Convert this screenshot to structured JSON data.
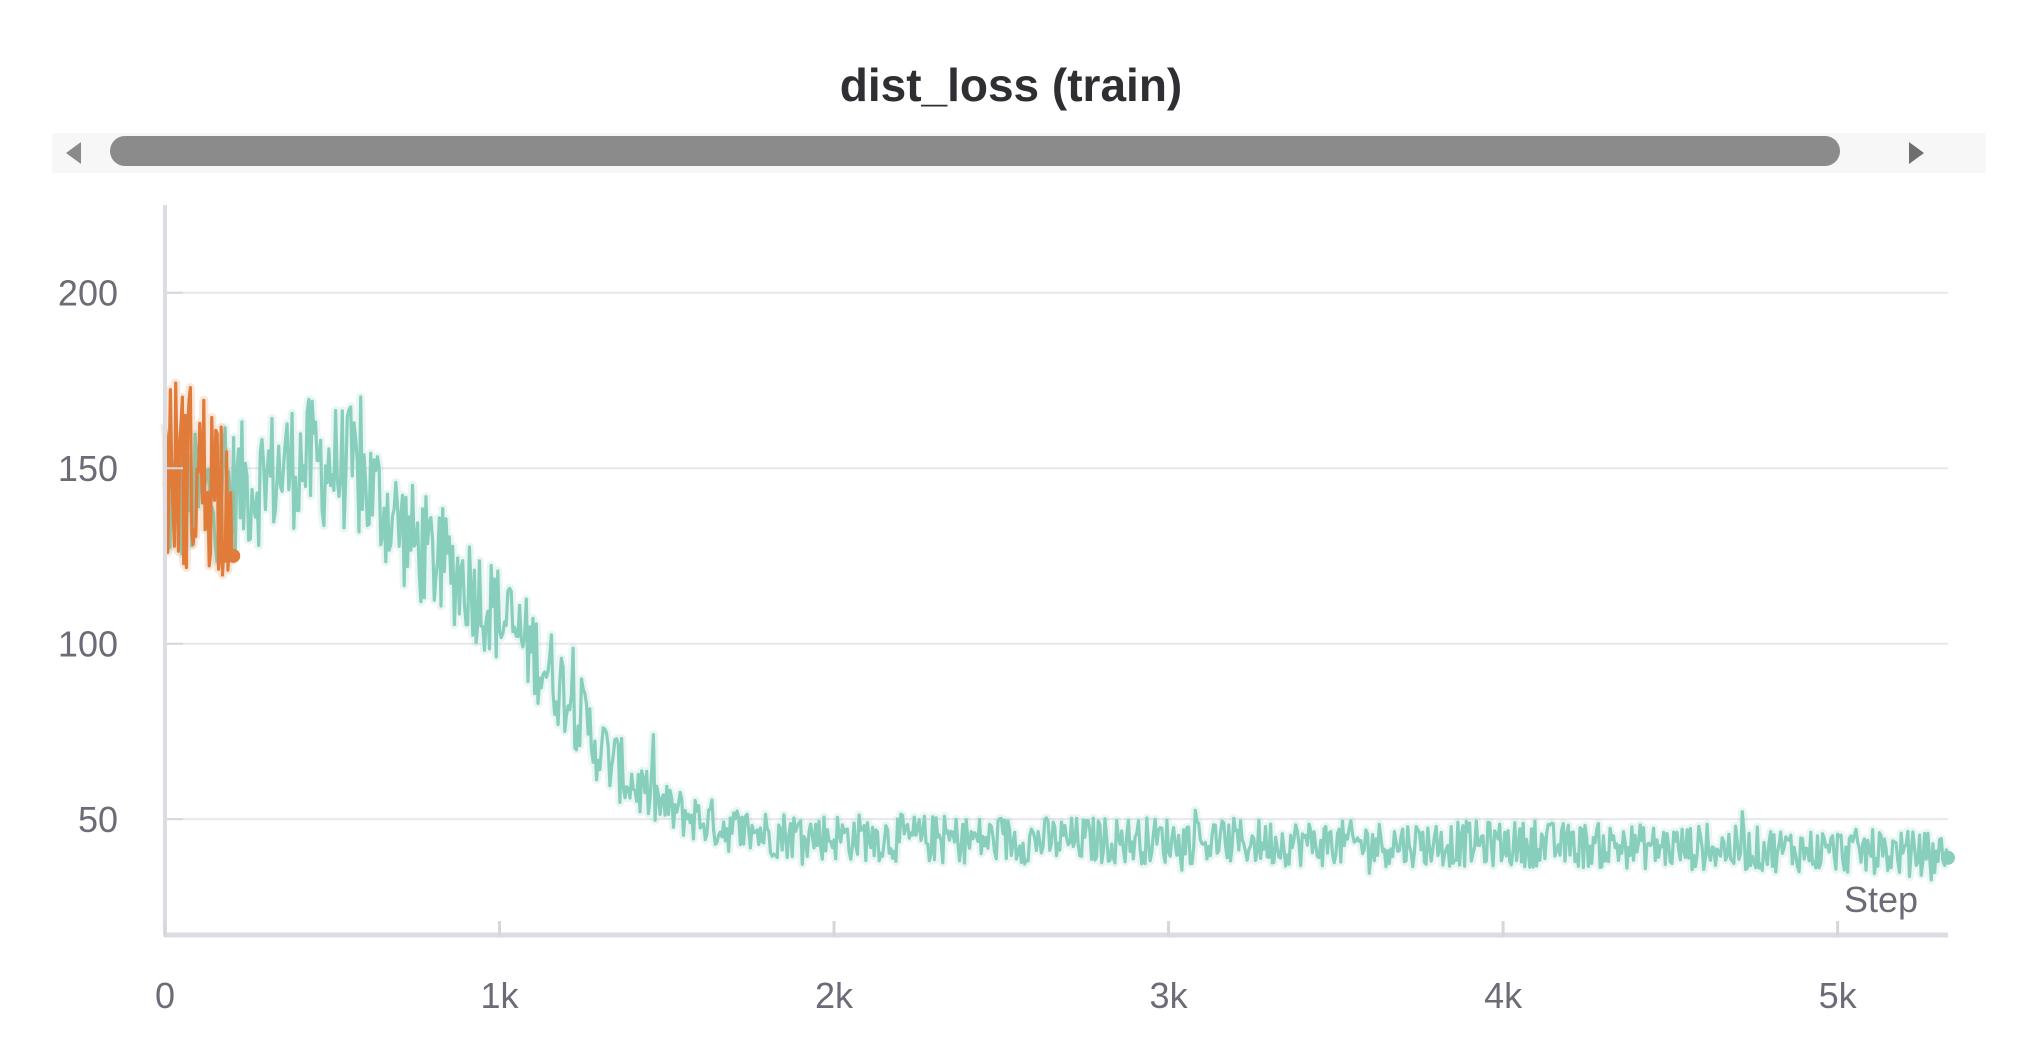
{
  "chart_data": {
    "type": "line",
    "title": "dist_loss (train)",
    "xlabel": "Step",
    "ylabel": "",
    "xlim": [
      0,
      5330
    ],
    "ylim": [
      17,
      225
    ],
    "x_ticks": [
      0,
      1000,
      2000,
      3000,
      4000,
      5000
    ],
    "x_tick_labels": [
      "0",
      "1k",
      "2k",
      "3k",
      "4k",
      "5k"
    ],
    "y_ticks": [
      50,
      100,
      150,
      200
    ],
    "y_tick_labels": [
      "50",
      "100",
      "150",
      "200"
    ],
    "grid": true,
    "series": [
      {
        "color": "#87cfbc",
        "x_range": [
          0,
          5330
        ],
        "anchors": [
          [
            0,
            140
          ],
          [
            200,
            143
          ],
          [
            400,
            152
          ],
          [
            550,
            150
          ],
          [
            650,
            140
          ],
          [
            750,
            128
          ],
          [
            900,
            118
          ],
          [
            1000,
            108
          ],
          [
            1100,
            98
          ],
          [
            1200,
            86
          ],
          [
            1300,
            70
          ],
          [
            1400,
            60
          ],
          [
            1500,
            53
          ],
          [
            1600,
            50
          ],
          [
            1700,
            47
          ],
          [
            1800,
            46
          ],
          [
            2000,
            45
          ],
          [
            2500,
            44
          ],
          [
            3000,
            44
          ],
          [
            3500,
            43
          ],
          [
            4000,
            43
          ],
          [
            4500,
            42
          ],
          [
            5000,
            41
          ],
          [
            5330,
            40
          ]
        ],
        "noise_amplitude": [
          [
            0,
            28
          ],
          [
            600,
            26
          ],
          [
            1200,
            18
          ],
          [
            1500,
            10
          ],
          [
            5330,
            9
          ]
        ],
        "end_value": 39
      },
      {
        "color": "#e07b39",
        "x_range": [
          0,
          205
        ],
        "anchors": [
          [
            0,
            150
          ],
          [
            205,
            145
          ]
        ],
        "noise_amplitude": [
          [
            0,
            40
          ],
          [
            205,
            38
          ]
        ],
        "end_value": 125
      }
    ]
  },
  "scrollbar": {
    "left_arrow": "caret-left-icon",
    "right_arrow": "caret-right-icon"
  }
}
